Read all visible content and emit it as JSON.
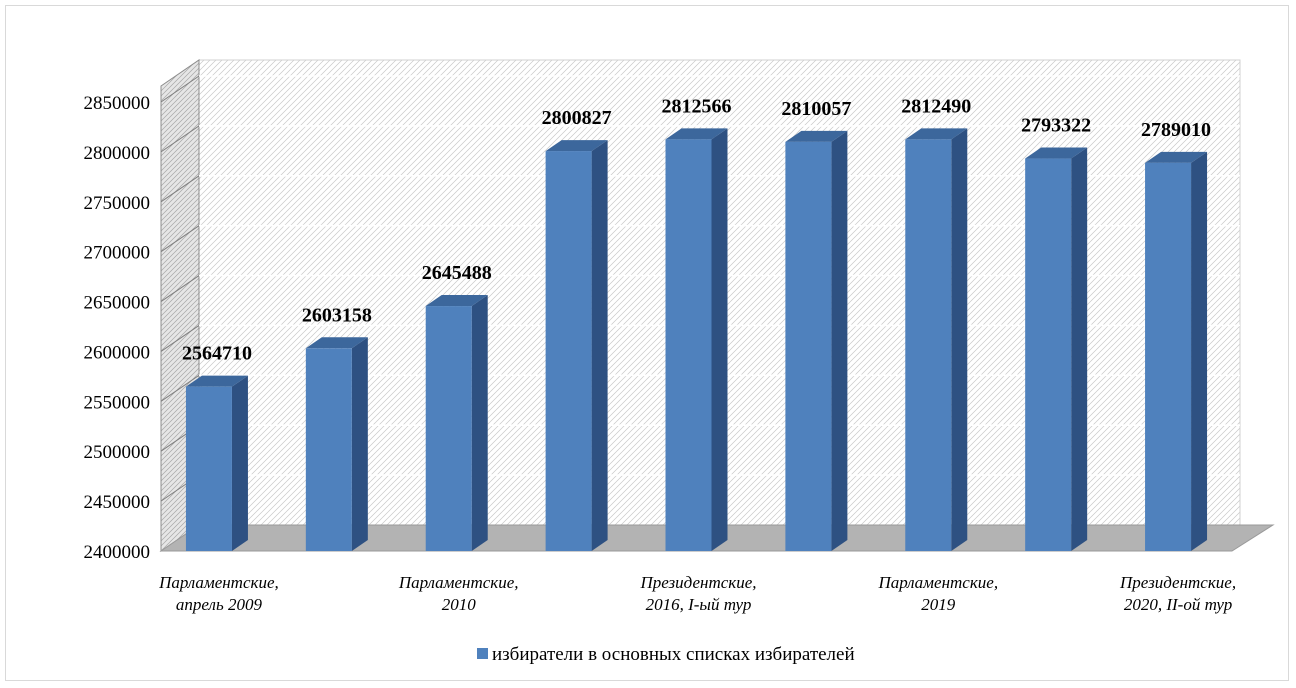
{
  "chart_data": {
    "type": "bar",
    "three_d": true,
    "title": "",
    "xlabel": "",
    "ylabel": "",
    "ylim": [
      2400000,
      2850000
    ],
    "ytick_step": 50000,
    "grid": true,
    "legend_position": "bottom",
    "bar_color": "#4f81bd",
    "categories": [
      "Парламентские, апрель 2009",
      "",
      "Парламентские, 2010",
      "",
      "Президентские, 2016, I-ый тур",
      "",
      "Парламентские, 2019",
      "",
      "Президентские, 2020, II-ой тур"
    ],
    "category_label_lines": [
      [
        "Парламентские,",
        "апрель 2009"
      ],
      [],
      [
        "Парламентские,",
        "2010"
      ],
      [],
      [
        "Президентские,",
        "2016, I-ый тур"
      ],
      [],
      [
        "Парламентские,",
        "2019"
      ],
      [],
      [
        "Президентские,",
        "2020, II-ой тур"
      ]
    ],
    "series": [
      {
        "name": "избиратели в основных списках избирателей",
        "values": [
          2564710,
          2603158,
          2645488,
          2800827,
          2812566,
          2810057,
          2812490,
          2793322,
          2789010
        ]
      }
    ]
  }
}
